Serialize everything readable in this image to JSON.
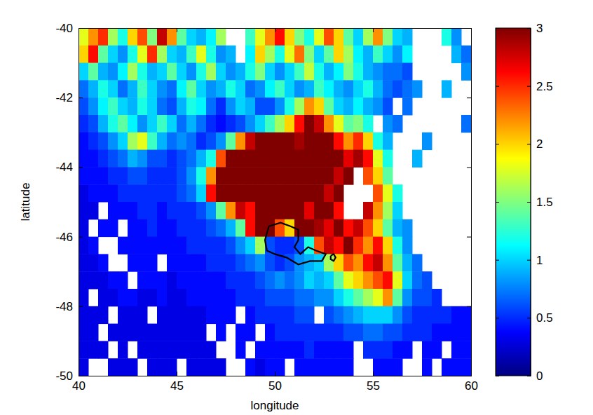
{
  "chart_data": {
    "type": "heatmap",
    "xlabel": "longitude",
    "ylabel": "latitude",
    "xlim": [
      40,
      60
    ],
    "ylim": [
      -50,
      -40
    ],
    "xticks": [
      40,
      45,
      50,
      55,
      60
    ],
    "yticks": [
      -50,
      -48,
      -46,
      -44,
      -42,
      -40
    ],
    "colorbar_range": [
      0,
      3
    ],
    "colorbar_ticks": [
      0,
      0.5,
      1,
      1.5,
      2,
      2.5,
      3
    ],
    "x": [
      40.25,
      40.75,
      41.25,
      41.75,
      42.25,
      42.75,
      43.25,
      43.75,
      44.25,
      44.75,
      45.25,
      45.75,
      46.25,
      46.75,
      47.25,
      47.75,
      48.25,
      48.75,
      49.25,
      49.75,
      50.25,
      50.75,
      51.25,
      51.75,
      52.25,
      52.75,
      53.25,
      53.75,
      54.25,
      54.75,
      55.25,
      55.75,
      56.25,
      56.75,
      57.25,
      57.75,
      58.25,
      58.75,
      59.25,
      59.75
    ],
    "y": [
      -40.25,
      -40.75,
      -41.25,
      -41.75,
      -42.25,
      -42.75,
      -43.25,
      -43.75,
      -44.25,
      -44.75,
      -45.25,
      -45.75,
      -46.25,
      -46.75,
      -47.25,
      -47.75,
      -48.25,
      -48.75,
      -49.25,
      -49.75
    ],
    "z": [
      [
        1.8,
        2.2,
        2.5,
        1.6,
        1.2,
        2.0,
        2.4,
        1.5,
        2.8,
        2.2,
        1.4,
        1.0,
        0.9,
        1.1,
        1.6,
        null,
        null,
        1.3,
        1.8,
        2.2,
        2.6,
        2.0,
        1.5,
        1.2,
        1.8,
        2.4,
        2.0,
        1.4,
        1.0,
        1.6,
        2.2,
        1.5,
        1.0,
        0.9,
        null,
        null,
        null,
        1.2,
        0.8,
        null
      ],
      [
        2.0,
        2.6,
        1.4,
        1.0,
        0.8,
        1.2,
        1.8,
        2.5,
        1.6,
        1.0,
        0.9,
        1.3,
        1.8,
        1.2,
        0.8,
        0.9,
        null,
        1.1,
        2.0,
        1.6,
        1.2,
        1.8,
        2.3,
        1.5,
        1.0,
        1.4,
        2.0,
        1.6,
        1.1,
        0.9,
        1.3,
        1.0,
        0.8,
        1.1,
        null,
        null,
        null,
        null,
        0.9,
        0.7
      ],
      [
        1.0,
        1.4,
        0.9,
        0.8,
        1.1,
        1.6,
        1.2,
        0.9,
        1.0,
        1.4,
        1.0,
        0.8,
        1.2,
        1.6,
        1.0,
        0.8,
        0.9,
        1.2,
        1.5,
        1.0,
        0.8,
        1.0,
        1.3,
        1.7,
        1.2,
        0.9,
        1.1,
        1.5,
        1.2,
        0.9,
        0.8,
        0.7,
        0.7,
        0.6,
        null,
        null,
        null,
        null,
        null,
        0.8
      ],
      [
        0.7,
        0.9,
        1.2,
        1.0,
        0.7,
        0.9,
        1.3,
        1.0,
        0.8,
        0.7,
        1.1,
        1.4,
        1.0,
        0.8,
        0.9,
        1.2,
        1.0,
        0.7,
        0.8,
        1.1,
        1.3,
        1.0,
        0.8,
        0.9,
        1.3,
        1.1,
        0.9,
        0.8,
        1.0,
        1.2,
        0.9,
        0.7,
        0.6,
        0.7,
        0.8,
        null,
        null,
        0.9,
        null,
        null
      ],
      [
        0.6,
        0.8,
        1.1,
        1.3,
        1.0,
        0.9,
        1.2,
        1.0,
        0.7,
        0.6,
        0.9,
        1.2,
        1.1,
        0.7,
        0.5,
        0.8,
        1.0,
        0.9,
        0.6,
        0.6,
        0.8,
        1.2,
        1.6,
        2.2,
        2.0,
        1.4,
        1.0,
        0.9,
        1.1,
        0.9,
        0.8,
        0.6,
        null,
        0.7,
        null,
        null,
        null,
        null,
        null,
        null
      ],
      [
        0.5,
        0.6,
        0.9,
        1.2,
        1.4,
        1.1,
        0.8,
        1.0,
        1.3,
        1.0,
        0.7,
        0.9,
        0.7,
        0.5,
        0.4,
        0.5,
        0.6,
        0.8,
        1.0,
        1.3,
        1.6,
        2.0,
        2.6,
        3.0,
        2.8,
        2.2,
        1.8,
        1.4,
        1.5,
        1.2,
        null,
        0.8,
        0.7,
        null,
        null,
        null,
        null,
        null,
        null,
        0.7
      ],
      [
        0.4,
        0.5,
        0.6,
        0.8,
        1.0,
        1.6,
        1.8,
        1.3,
        0.9,
        0.7,
        0.8,
        0.7,
        0.5,
        0.6,
        0.8,
        1.4,
        2.2,
        2.8,
        3.0,
        3.0,
        3.0,
        3.0,
        2.9,
        3.0,
        3.0,
        3.0,
        2.6,
        2.2,
        2.5,
        2.0,
        1.2,
        0.9,
        null,
        null,
        null,
        0.8,
        null,
        null,
        null,
        null
      ],
      [
        0.4,
        0.4,
        0.5,
        0.6,
        0.7,
        0.9,
        0.8,
        0.6,
        0.6,
        0.5,
        0.6,
        0.7,
        0.9,
        1.2,
        2.4,
        3.0,
        3.0,
        3.0,
        3.0,
        3.0,
        3.0,
        3.0,
        3.0,
        3.0,
        3.0,
        3.0,
        3.0,
        2.7,
        2.9,
        2.6,
        1.8,
        1.2,
        null,
        null,
        0.9,
        null,
        null,
        null,
        null,
        null
      ],
      [
        0.4,
        0.4,
        0.4,
        0.5,
        0.5,
        0.6,
        0.6,
        0.5,
        0.5,
        0.5,
        0.6,
        0.8,
        1.2,
        2.2,
        3.0,
        3.0,
        3.0,
        3.0,
        3.0,
        3.0,
        3.0,
        3.0,
        3.0,
        3.0,
        3.0,
        3.0,
        2.8,
        3.0,
        null,
        2.4,
        2.0,
        1.4,
        null,
        null,
        null,
        null,
        null,
        null,
        null,
        null
      ],
      [
        0.3,
        0.4,
        0.4,
        0.4,
        0.5,
        0.5,
        0.5,
        0.5,
        0.5,
        0.5,
        0.6,
        0.7,
        1.0,
        2.6,
        3.0,
        3.0,
        3.0,
        3.0,
        3.0,
        3.0,
        3.0,
        3.0,
        3.0,
        3.0,
        3.0,
        2.8,
        3.0,
        null,
        null,
        null,
        2.4,
        1.8,
        1.2,
        null,
        null,
        null,
        null,
        null,
        null,
        null
      ],
      [
        0.3,
        0.3,
        null,
        0.4,
        0.4,
        0.4,
        0.5,
        0.5,
        0.4,
        0.5,
        0.5,
        0.5,
        0.6,
        0.8,
        1.4,
        2.2,
        2.8,
        2.6,
        3.0,
        3.0,
        3.0,
        3.0,
        3.0,
        2.7,
        3.0,
        3.0,
        2.6,
        null,
        null,
        2.8,
        2.2,
        1.6,
        1.0,
        null,
        null,
        null,
        null,
        null,
        null,
        null
      ],
      [
        0.3,
        null,
        0.4,
        0.4,
        null,
        0.4,
        0.4,
        0.5,
        0.4,
        0.4,
        0.5,
        0.5,
        0.5,
        0.6,
        0.7,
        0.9,
        1.4,
        2.6,
        3.0,
        3.0,
        2.4,
        2.0,
        3.0,
        3.0,
        2.9,
        2.7,
        3.0,
        2.6,
        2.8,
        2.4,
        2.0,
        1.4,
        0.9,
        0.8,
        null,
        null,
        null,
        null,
        null,
        null
      ],
      [
        0.3,
        0.4,
        null,
        null,
        0.4,
        0.4,
        0.4,
        0.4,
        0.4,
        0.4,
        0.4,
        0.5,
        0.5,
        0.5,
        0.5,
        0.6,
        0.8,
        1.0,
        1.6,
        0.6,
        0.5,
        0.5,
        0.6,
        1.2,
        2.4,
        2.8,
        2.6,
        3.0,
        2.5,
        2.2,
        2.6,
        2.0,
        1.2,
        0.8,
        null,
        null,
        null,
        null,
        null,
        null
      ],
      [
        0.3,
        0.3,
        0.4,
        null,
        null,
        0.4,
        0.4,
        0.4,
        null,
        0.4,
        0.4,
        0.4,
        0.4,
        0.5,
        0.5,
        0.5,
        0.6,
        0.7,
        0.8,
        0.6,
        0.5,
        0.6,
        0.8,
        0.9,
        1.0,
        1.6,
        2.0,
        2.4,
        2.2,
        2.6,
        2.8,
        2.2,
        1.4,
        0.9,
        0.7,
        null,
        null,
        null,
        null,
        null
      ],
      [
        0.3,
        0.3,
        0.3,
        0.4,
        0.4,
        null,
        0.4,
        0.4,
        0.4,
        0.3,
        0.4,
        0.4,
        0.4,
        0.4,
        0.4,
        0.5,
        0.5,
        0.5,
        0.6,
        0.7,
        0.8,
        0.7,
        0.8,
        1.0,
        0.9,
        1.0,
        1.4,
        1.8,
        2.0,
        2.2,
        2.4,
        2.6,
        1.8,
        1.0,
        0.7,
        0.6,
        null,
        null,
        null,
        null
      ],
      [
        0.3,
        null,
        0.3,
        0.3,
        0.4,
        0.4,
        0.3,
        0.3,
        0.4,
        0.3,
        0.3,
        0.4,
        0.4,
        0.4,
        0.4,
        0.4,
        0.5,
        0.5,
        0.5,
        0.6,
        0.6,
        0.6,
        0.7,
        0.7,
        0.8,
        0.8,
        1.0,
        1.2,
        1.4,
        1.6,
        1.8,
        2.2,
        1.4,
        0.8,
        0.6,
        0.6,
        0.5,
        null,
        null,
        null
      ],
      [
        0.3,
        0.3,
        0.3,
        null,
        0.3,
        0.3,
        0.3,
        null,
        0.3,
        0.3,
        0.3,
        0.3,
        0.3,
        0.4,
        0.4,
        0.4,
        null,
        0.4,
        0.5,
        0.5,
        0.5,
        0.5,
        0.6,
        0.6,
        null,
        0.6,
        0.7,
        0.8,
        0.9,
        1.0,
        1.0,
        1.0,
        0.8,
        0.6,
        0.5,
        0.5,
        0.5,
        0.5,
        0.4,
        0.4
      ],
      [
        0.3,
        0.3,
        null,
        0.3,
        0.3,
        0.3,
        0.3,
        0.3,
        0.3,
        0.3,
        0.3,
        0.3,
        0.3,
        null,
        0.4,
        null,
        0.4,
        0.4,
        null,
        0.4,
        0.5,
        0.5,
        0.5,
        0.5,
        0.5,
        0.5,
        0.5,
        0.6,
        0.6,
        0.7,
        0.7,
        0.6,
        0.6,
        0.5,
        0.5,
        0.5,
        0.4,
        0.4,
        0.4,
        0.4
      ],
      [
        0.3,
        0.3,
        0.3,
        null,
        0.3,
        null,
        0.3,
        0.3,
        0.3,
        0.3,
        0.3,
        0.3,
        0.3,
        0.3,
        null,
        null,
        0.4,
        null,
        0.4,
        0.4,
        0.4,
        0.4,
        0.4,
        0.5,
        0.4,
        0.4,
        0.4,
        0.4,
        null,
        0.5,
        0.5,
        0.5,
        0.4,
        0.4,
        null,
        0.4,
        0.4,
        null,
        0.4,
        0.4
      ],
      [
        0.3,
        null,
        null,
        0.3,
        0.3,
        0.3,
        null,
        0.3,
        0.3,
        0.3,
        null,
        0.3,
        0.3,
        0.3,
        0.3,
        null,
        null,
        0.4,
        0.3,
        0.4,
        0.4,
        null,
        0.4,
        0.4,
        0.4,
        0.4,
        0.4,
        0.4,
        null,
        null,
        0.4,
        0.4,
        0.4,
        null,
        null,
        0.4,
        null,
        0.4,
        0.4,
        0.4
      ]
    ],
    "contours": [
      {
        "x": [
          49.7,
          50.3,
          50.8,
          51.2,
          51.2,
          51.0,
          51.3,
          51.7,
          52.1,
          52.6,
          52.4,
          51.8,
          51.2,
          50.6,
          50.0,
          49.6,
          49.5,
          49.7
        ],
        "y": [
          -45.7,
          -45.6,
          -45.7,
          -45.8,
          -46.1,
          -46.3,
          -46.5,
          -46.3,
          -46.4,
          -46.5,
          -46.7,
          -46.7,
          -46.8,
          -46.6,
          -46.5,
          -46.4,
          -46.1,
          -45.7
        ]
      },
      {
        "x": [
          52.85,
          53.0,
          53.1,
          53.0,
          52.85,
          52.85
        ],
        "y": [
          -46.55,
          -46.5,
          -46.6,
          -46.7,
          -46.65,
          -46.55
        ]
      }
    ]
  }
}
